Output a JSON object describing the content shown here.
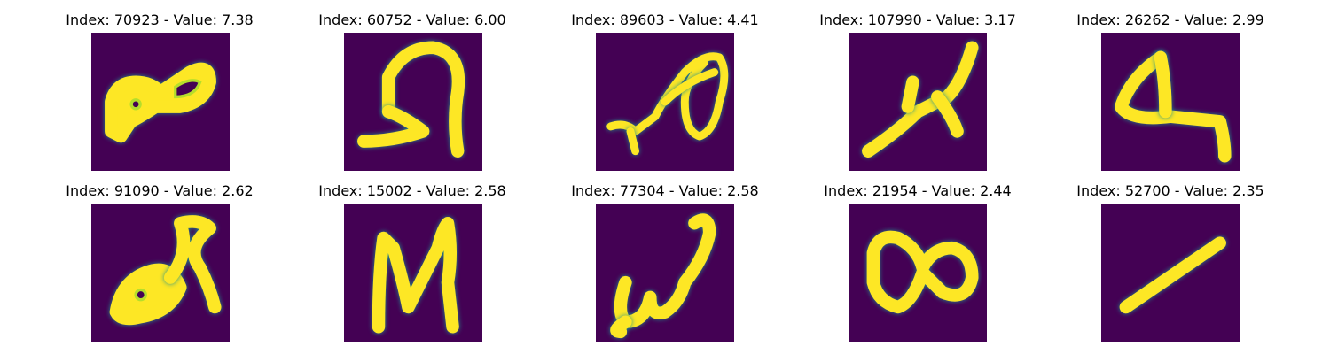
{
  "colors": {
    "background": "#440154",
    "stroke_core": "#fde725",
    "stroke_mid": "#b5de2b",
    "stroke_edge": "#21918c"
  },
  "panels": [
    {
      "title": "Index: 70923 - Value: 7.38",
      "glyph": "handwritten-glyph"
    },
    {
      "title": "Index: 60752 - Value: 6.00",
      "glyph": "handwritten-glyph"
    },
    {
      "title": "Index: 89603 - Value: 4.41",
      "glyph": "handwritten-glyph"
    },
    {
      "title": "Index: 107990 - Value: 3.17",
      "glyph": "handwritten-glyph"
    },
    {
      "title": "Index: 26262 - Value: 2.99",
      "glyph": "handwritten-glyph"
    },
    {
      "title": "Index: 91090 - Value: 2.62",
      "glyph": "handwritten-glyph"
    },
    {
      "title": "Index: 15002 - Value: 2.58",
      "glyph": "handwritten-glyph"
    },
    {
      "title": "Index: 77304 - Value: 2.58",
      "glyph": "handwritten-glyph"
    },
    {
      "title": "Index: 21954 - Value: 2.44",
      "glyph": "handwritten-glyph"
    },
    {
      "title": "Index: 52700 - Value: 2.35",
      "glyph": "handwritten-glyph"
    }
  ]
}
